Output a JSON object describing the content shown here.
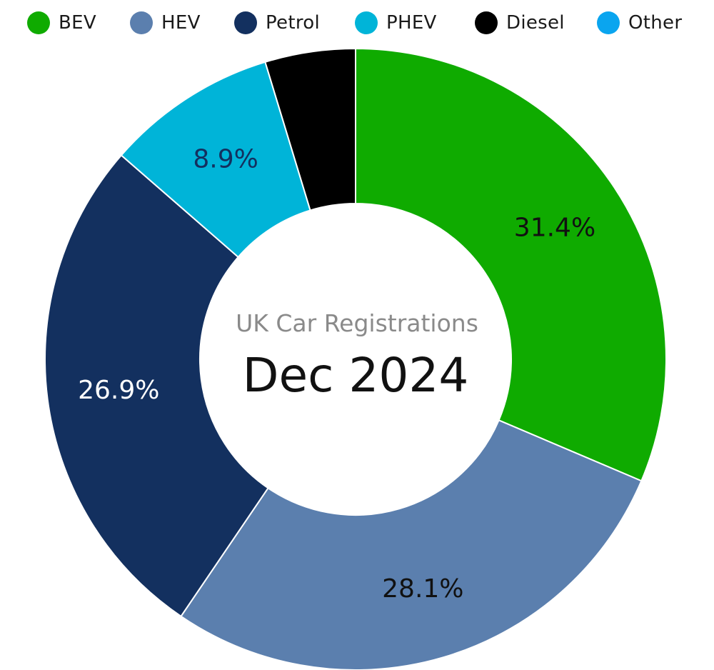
{
  "chart_data": {
    "type": "pie",
    "subtitle": "UK Car Registrations",
    "title": "Dec 2024",
    "legend_placement": "top",
    "series": [
      {
        "name": "BEV",
        "value": 31.4,
        "label": "31.4%",
        "color": "#0fab00",
        "label_color": "#111111"
      },
      {
        "name": "HEV",
        "value": 28.1,
        "label": "28.1%",
        "color": "#5b7fae",
        "label_color": "#111111"
      },
      {
        "name": "Petrol",
        "value": 26.9,
        "label": "26.9%",
        "color": "#13305f",
        "label_color": "#ffffff"
      },
      {
        "name": "PHEV",
        "value": 8.9,
        "label": "8.9%",
        "color": "#00b4d8",
        "label_color": "#13305f"
      },
      {
        "name": "Diesel",
        "value": 4.7,
        "label": "",
        "color": "#000000",
        "label_color": "#ffffff"
      }
    ],
    "legend": [
      {
        "name": "BEV",
        "color": "#0fab00"
      },
      {
        "name": "HEV",
        "color": "#5b7fae"
      },
      {
        "name": "Petrol",
        "color": "#13305f"
      },
      {
        "name": "PHEV",
        "color": "#00b4d8"
      },
      {
        "name": "Diesel",
        "color": "#000000"
      },
      {
        "name": "Other",
        "color": "#0aa5ef"
      }
    ]
  }
}
